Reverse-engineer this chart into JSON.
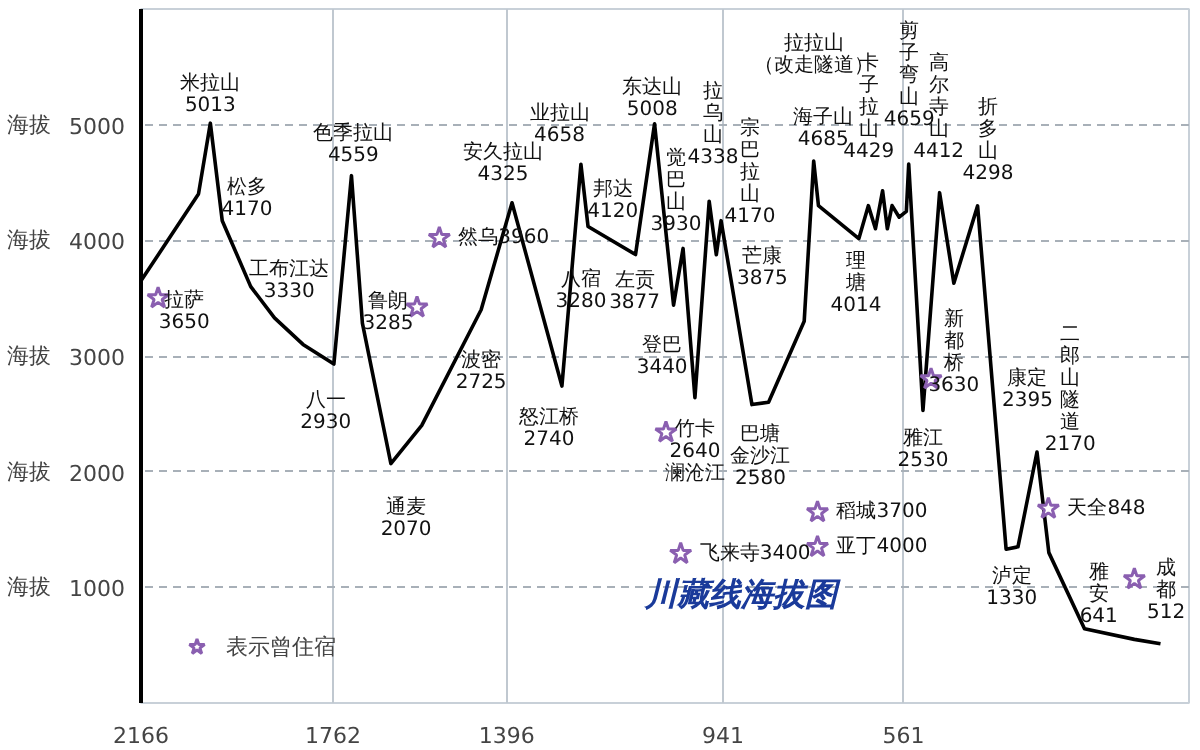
{
  "chart_data": {
    "type": "line",
    "title": "川藏线海拔图",
    "ylabel": "海拔",
    "xlim": [
      2166,
      -40
    ],
    "ylim": [
      0,
      6000
    ],
    "xticks": [
      2166,
      1762,
      1396,
      941,
      561
    ],
    "yticks": [
      1000,
      2000,
      3000,
      4000,
      5000
    ],
    "grid": true,
    "legend": "bottom left",
    "line_style": "solid",
    "series": [
      {
        "color": "#000000",
        "x": [
          2166,
          2045,
          2020,
          1995,
          1935,
          1885,
          1825,
          1760,
          1723,
          1700,
          1640,
          1575,
          1450,
          1385,
          1280,
          1240,
          1225,
          1125,
          1085,
          1045,
          1025,
          1000,
          970,
          955,
          945,
          880,
          845,
          770,
          750,
          740,
          655,
          635,
          620,
          605,
          595,
          585,
          570,
          555,
          550,
          520,
          485,
          455,
          405,
          345,
          320,
          280,
          255,
          180,
          75,
          20
        ],
        "values": [
          3650,
          4400,
          5013,
          4170,
          3600,
          3330,
          3100,
          2930,
          4559,
          3285,
          2070,
          2400,
          3400,
          4325,
          2740,
          4658,
          4120,
          3877,
          5008,
          3440,
          3930,
          2640,
          4338,
          3875,
          4170,
          2580,
          2600,
          3300,
          4685,
          4300,
          4014,
          4300,
          4100,
          4429,
          4100,
          4300,
          4200,
          4250,
          4659,
          2530,
          4412,
          3630,
          4298,
          1330,
          1350,
          2170,
          1300,
          641,
          550,
          512
        ],
        "value_labels": [
          "拉萨3650",
          null,
          "米拉山5013",
          "松多4170",
          null,
          "工布江达3330",
          null,
          "八一2930",
          "色季拉山4559",
          "鲁朗3285",
          "通麦2070",
          null,
          null,
          "安久拉山4325",
          "怒江桥2740",
          "业拉山4658",
          "邦达4120",
          "左贡3877",
          "东达山5008",
          "登巴3440",
          "觉巴山3930",
          "竹卡2640澜沧江",
          "拉乌山4338",
          "芒康3875",
          "宗巴拉山4170",
          "巴塘金沙江2580",
          null,
          null,
          "海子山4685",
          null,
          "理塘4014",
          null,
          null,
          "卡子拉山4429",
          null,
          null,
          null,
          null,
          "剪子弯山4659",
          "雅江2530",
          "高尔寺山4412",
          "新都桥3630",
          "折多山4298",
          "泸定1330",
          null,
          "二郎山隧道2170",
          null,
          "雅安641",
          null,
          "成都512"
        ]
      },
      {
        "type": "scatter",
        "name": "表示曾住宿",
        "color": "#8a5fb0",
        "marker": "star",
        "x": [
          2130,
          1538,
          1585,
          1061,
          1030,
          742,
          742,
          503,
          256,
          75
        ],
        "values": [
          3500,
          4020,
          3420,
          2340,
          1290,
          1650,
          1350,
          2800,
          1680,
          1070
        ],
        "value_labels": [
          null,
          "然乌3960",
          null,
          null,
          "飞来寺3400",
          "稻城3700",
          "亚丁4000",
          null,
          "天全848",
          null
        ]
      }
    ],
    "annotations": [
      "波密2725",
      "八宿3280",
      "康定2395",
      "拉拉山（改走隧道）"
    ]
  }
}
